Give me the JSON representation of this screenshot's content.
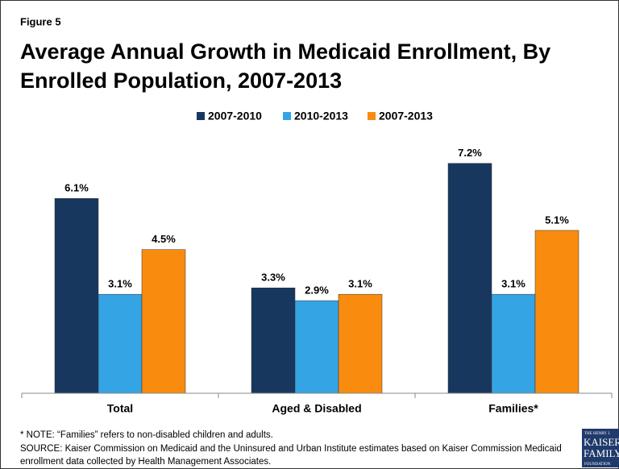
{
  "chart_data": {
    "type": "bar",
    "figure_label": "Figure 5",
    "title": [
      "Average Annual Growth in Medicaid Enrollment, By",
      "Enrolled Population, 2007-2013"
    ],
    "categories": [
      "Total",
      "Aged & Disabled",
      "Families*"
    ],
    "series": [
      {
        "name": "2007-2010",
        "color": "#17375e",
        "values": [
          6.1,
          3.3,
          7.2
        ],
        "value_labels": [
          "6.1%",
          "3.3%",
          "7.2%"
        ]
      },
      {
        "name": "2010-2013",
        "color": "#34a4e4",
        "values": [
          3.1,
          2.9,
          3.1
        ],
        "value_labels": [
          "3.1%",
          "2.9%",
          "3.1%"
        ]
      },
      {
        "name": "2007-2013",
        "color": "#f98b0f",
        "values": [
          4.5,
          3.1,
          5.1
        ],
        "value_labels": [
          "4.5%",
          "3.1%",
          "5.1%"
        ]
      }
    ],
    "ylim": [
      0,
      8
    ],
    "legend": "top",
    "notes": [
      "* NOTE: “Families” refers to non-disabled children and adults.",
      "SOURCE: Kaiser Commission on Medicaid and the Uninsured and Urban Institute estimates based on Kaiser Commission Medicaid",
      "enrollment data collected by Health Management Associates."
    ],
    "logo": [
      "THE HENRY J.",
      "KAISER",
      "FAMILY",
      "FOUNDATION"
    ]
  }
}
